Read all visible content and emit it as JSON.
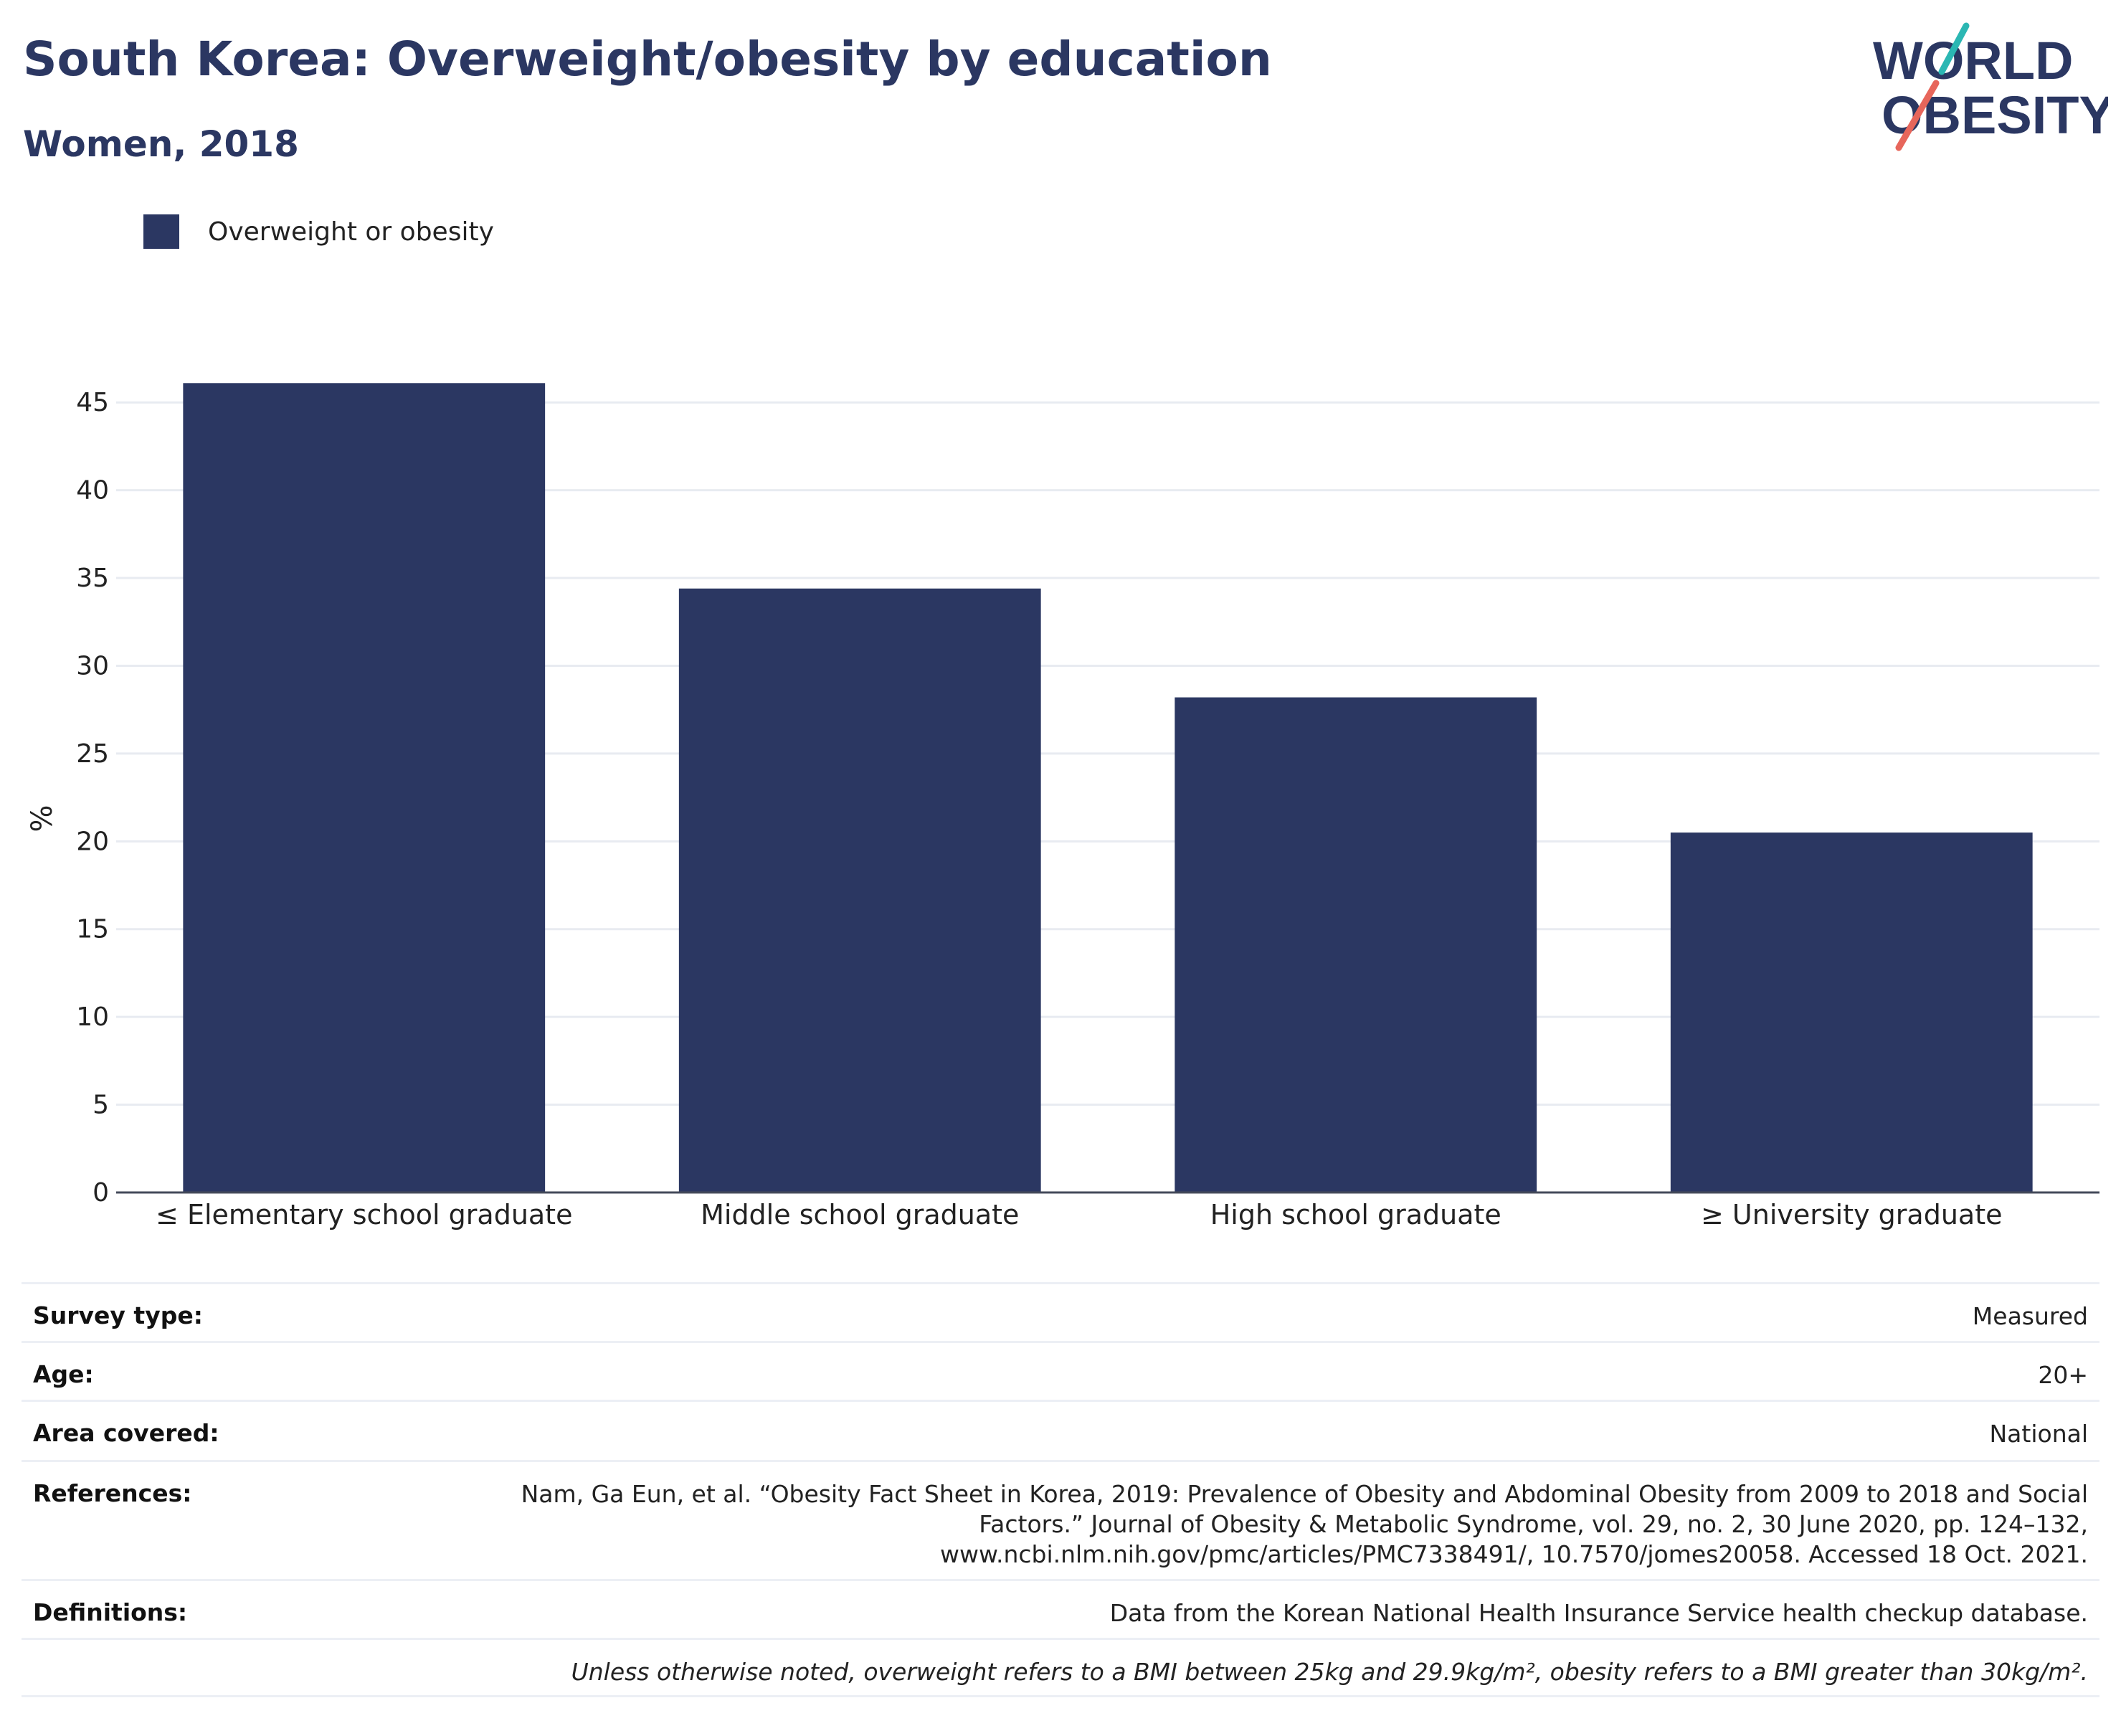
{
  "header": {
    "title": "South Korea: Overweight/obesity by education",
    "subtitle": "Women, 2018"
  },
  "logo": {
    "line1": "WORLD",
    "line2": "OBESITY",
    "icon": "world-obesity-logo"
  },
  "legend": {
    "label": "Overweight or obesity",
    "color": "#2b3762"
  },
  "chart_data": {
    "type": "bar",
    "categories": [
      "≤ Elementary school graduate",
      "Middle school graduate",
      "High school graduate",
      "≥ University graduate"
    ],
    "series": [
      {
        "name": "Overweight or obesity",
        "values": [
          46.1,
          34.4,
          28.2,
          20.5
        ]
      }
    ],
    "title": "South Korea: Overweight/obesity by education",
    "subtitle": "Women, 2018",
    "xlabel": "",
    "ylabel": "%",
    "ylim": [
      0,
      47.5
    ],
    "yticks": [
      0,
      5,
      10,
      15,
      20,
      25,
      30,
      35,
      40,
      45
    ],
    "grid": true,
    "legend_position": "top-left",
    "bar_color": "#2b3762"
  },
  "meta": [
    {
      "key": "Survey type:",
      "value": "Measured"
    },
    {
      "key": "Age:",
      "value": "20+"
    },
    {
      "key": "Area covered:",
      "value": "National"
    },
    {
      "key": "References:",
      "value_lines": [
        "Nam, Ga Eun, et al. “Obesity Fact Sheet in Korea, 2019: Prevalence of Obesity and Abdominal Obesity from 2009 to 2018 and Social",
        "Factors.” Journal of Obesity & Metabolic Syndrome, vol. 29, no. 2, 30 June 2020, pp. 124–132,",
        "www.ncbi.nlm.nih.gov/pmc/articles/PMC7338491/, 10.7570/jomes20058. Accessed 18 Oct. 2021."
      ]
    },
    {
      "key": "Definitions:",
      "value": "Data from the Korean National Health Insurance Service health checkup database."
    },
    {
      "key": "",
      "value": "Unless otherwise noted, overweight refers to a BMI between 25kg and 29.9kg/m², obesity refers to a BMI greater than 30kg/m²."
    }
  ]
}
